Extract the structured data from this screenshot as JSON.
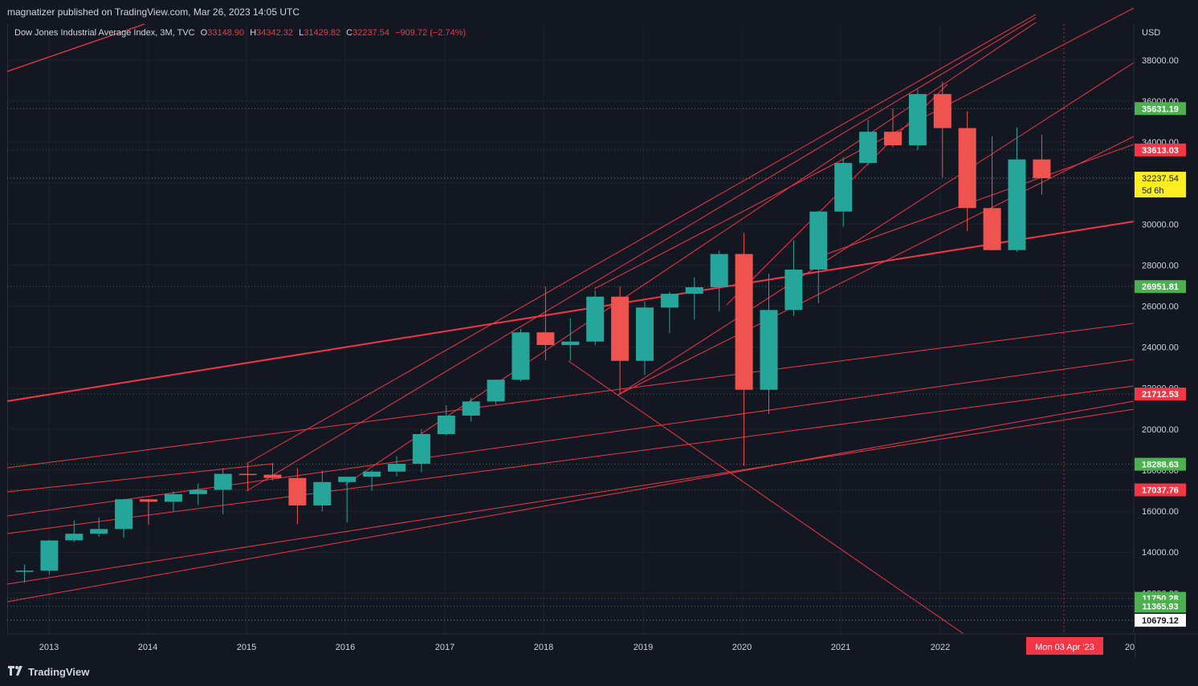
{
  "header": {
    "published": "magnatizer published on TradingView.com, Mar 26, 2023 14:05 UTC"
  },
  "legend": {
    "symbol": "Dow Jones Industrial Average Index, 3M, TVC",
    "open_label": "O",
    "open": "33148.90",
    "high_label": "H",
    "high": "34342.32",
    "low_label": "L",
    "low": "31429.82",
    "close_label": "C",
    "close": "32237.54",
    "change": "−909.72 (−2.74%)"
  },
  "axis": {
    "currency": "USD",
    "countdown": "5d 6h",
    "date_cursor": "Mon 03 Apr '23"
  },
  "footer": {
    "brand": "TradingView"
  },
  "colors": {
    "up": "#26a69a",
    "down": "#ef5350",
    "line": "#f23645",
    "bg": "#131722",
    "grid": "#2a2e39",
    "current": "#fcee21",
    "green_label": "#4caf50"
  },
  "chart_data": {
    "type": "candlestick",
    "symbol": "Dow Jones Industrial Average Index",
    "interval": "3M",
    "y_axis": {
      "ticks": [
        12000,
        14000,
        16000,
        18000,
        20000,
        22000,
        24000,
        26000,
        28000,
        30000,
        32000,
        34000,
        36000,
        38000
      ],
      "range": [
        10300,
        38500
      ],
      "position": "right"
    },
    "x_axis": {
      "labels": [
        "2013",
        "2014",
        "2015",
        "2016",
        "2017",
        "2018",
        "2019",
        "2020",
        "2021",
        "2022",
        "20"
      ]
    },
    "price_labels": [
      {
        "value": 35631.19,
        "text": "35631.19",
        "color": "green"
      },
      {
        "value": 33613.03,
        "text": "33613.03",
        "color": "red"
      },
      {
        "value": 32237.54,
        "text": "32237.54",
        "color": "yellow"
      },
      {
        "value": 26951.81,
        "text": "26951.81",
        "color": "green"
      },
      {
        "value": 21712.53,
        "text": "21712.53",
        "color": "red"
      },
      {
        "value": 18288.63,
        "text": "18288.63",
        "color": "green"
      },
      {
        "value": 17037.76,
        "text": "17037.76",
        "color": "red"
      },
      {
        "value": 11750.28,
        "text": "11750.28",
        "color": "green"
      },
      {
        "value": 11365.93,
        "text": "11365.93",
        "color": "green"
      },
      {
        "value": 10679.12,
        "text": "10679.12",
        "color": "white"
      }
    ],
    "candles": [
      {
        "date": "2012-Q4",
        "o": 13100,
        "h": 13400,
        "l": 12500,
        "c": 13100
      },
      {
        "date": "2013-Q1",
        "o": 13100,
        "h": 14600,
        "l": 12900,
        "c": 14570
      },
      {
        "date": "2013-Q2",
        "o": 14580,
        "h": 15550,
        "l": 14500,
        "c": 14900
      },
      {
        "date": "2013-Q3",
        "o": 14900,
        "h": 15700,
        "l": 14750,
        "c": 15130
      },
      {
        "date": "2013-Q4",
        "o": 15130,
        "h": 16600,
        "l": 14700,
        "c": 16580
      },
      {
        "date": "2014-Q1",
        "o": 16580,
        "h": 16600,
        "l": 15350,
        "c": 16460
      },
      {
        "date": "2014-Q2",
        "o": 16460,
        "h": 16970,
        "l": 16000,
        "c": 16830
      },
      {
        "date": "2014-Q3",
        "o": 16830,
        "h": 17350,
        "l": 16300,
        "c": 17040
      },
      {
        "date": "2014-Q4",
        "o": 17040,
        "h": 18100,
        "l": 15850,
        "c": 17820
      },
      {
        "date": "2015-Q1",
        "o": 17820,
        "h": 18300,
        "l": 17000,
        "c": 17780
      },
      {
        "date": "2015-Q2",
        "o": 17780,
        "h": 18350,
        "l": 17500,
        "c": 17620
      },
      {
        "date": "2015-Q3",
        "o": 17620,
        "h": 18100,
        "l": 15370,
        "c": 16280
      },
      {
        "date": "2015-Q4",
        "o": 16280,
        "h": 17980,
        "l": 16000,
        "c": 17420
      },
      {
        "date": "2016-Q1",
        "o": 17420,
        "h": 17500,
        "l": 15450,
        "c": 17680
      },
      {
        "date": "2016-Q2",
        "o": 17680,
        "h": 18000,
        "l": 17000,
        "c": 17930
      },
      {
        "date": "2016-Q3",
        "o": 17930,
        "h": 18680,
        "l": 17700,
        "c": 18310
      },
      {
        "date": "2016-Q4",
        "o": 18310,
        "h": 19990,
        "l": 17900,
        "c": 19760
      },
      {
        "date": "2017-Q1",
        "o": 19760,
        "h": 21170,
        "l": 19680,
        "c": 20660
      },
      {
        "date": "2017-Q2",
        "o": 20660,
        "h": 21530,
        "l": 20380,
        "c": 21350
      },
      {
        "date": "2017-Q3",
        "o": 21350,
        "h": 22420,
        "l": 21200,
        "c": 22410
      },
      {
        "date": "2017-Q4",
        "o": 22410,
        "h": 24880,
        "l": 22320,
        "c": 24720
      },
      {
        "date": "2018-Q1",
        "o": 24720,
        "h": 26950,
        "l": 23360,
        "c": 24100
      },
      {
        "date": "2018-Q2",
        "o": 24100,
        "h": 25400,
        "l": 23340,
        "c": 24270
      },
      {
        "date": "2018-Q3",
        "o": 24270,
        "h": 26770,
        "l": 24080,
        "c": 26460
      },
      {
        "date": "2018-Q4",
        "o": 26460,
        "h": 26950,
        "l": 21710,
        "c": 23330
      },
      {
        "date": "2019-Q1",
        "o": 23330,
        "h": 26240,
        "l": 22640,
        "c": 25930
      },
      {
        "date": "2019-Q2",
        "o": 25930,
        "h": 26700,
        "l": 24680,
        "c": 26600
      },
      {
        "date": "2019-Q3",
        "o": 26600,
        "h": 27400,
        "l": 25340,
        "c": 26920
      },
      {
        "date": "2019-Q4",
        "o": 26920,
        "h": 28700,
        "l": 25740,
        "c": 28540
      },
      {
        "date": "2020-Q1",
        "o": 28540,
        "h": 29570,
        "l": 18210,
        "c": 21920
      },
      {
        "date": "2020-Q2",
        "o": 21920,
        "h": 27580,
        "l": 20740,
        "c": 25810
      },
      {
        "date": "2020-Q3",
        "o": 25810,
        "h": 29200,
        "l": 25520,
        "c": 27780
      },
      {
        "date": "2020-Q4",
        "o": 27780,
        "h": 30640,
        "l": 26140,
        "c": 30610
      },
      {
        "date": "2021-Q1",
        "o": 30610,
        "h": 33260,
        "l": 29860,
        "c": 32980
      },
      {
        "date": "2021-Q2",
        "o": 32980,
        "h": 35090,
        "l": 32850,
        "c": 34500
      },
      {
        "date": "2021-Q3",
        "o": 34500,
        "h": 35630,
        "l": 33740,
        "c": 33840
      },
      {
        "date": "2021-Q4",
        "o": 33840,
        "h": 36570,
        "l": 33610,
        "c": 36340
      },
      {
        "date": "2022-Q1",
        "o": 36340,
        "h": 36950,
        "l": 32270,
        "c": 34680
      },
      {
        "date": "2022-Q2",
        "o": 34680,
        "h": 35490,
        "l": 29650,
        "c": 30780
      },
      {
        "date": "2022-Q3",
        "o": 30780,
        "h": 34280,
        "l": 28720,
        "c": 28730
      },
      {
        "date": "2022-Q4",
        "o": 28730,
        "h": 34710,
        "l": 28660,
        "c": 33150
      },
      {
        "date": "2023-Q1",
        "o": 33150,
        "h": 34342.32,
        "l": 31429.82,
        "c": 32237.54
      }
    ]
  }
}
